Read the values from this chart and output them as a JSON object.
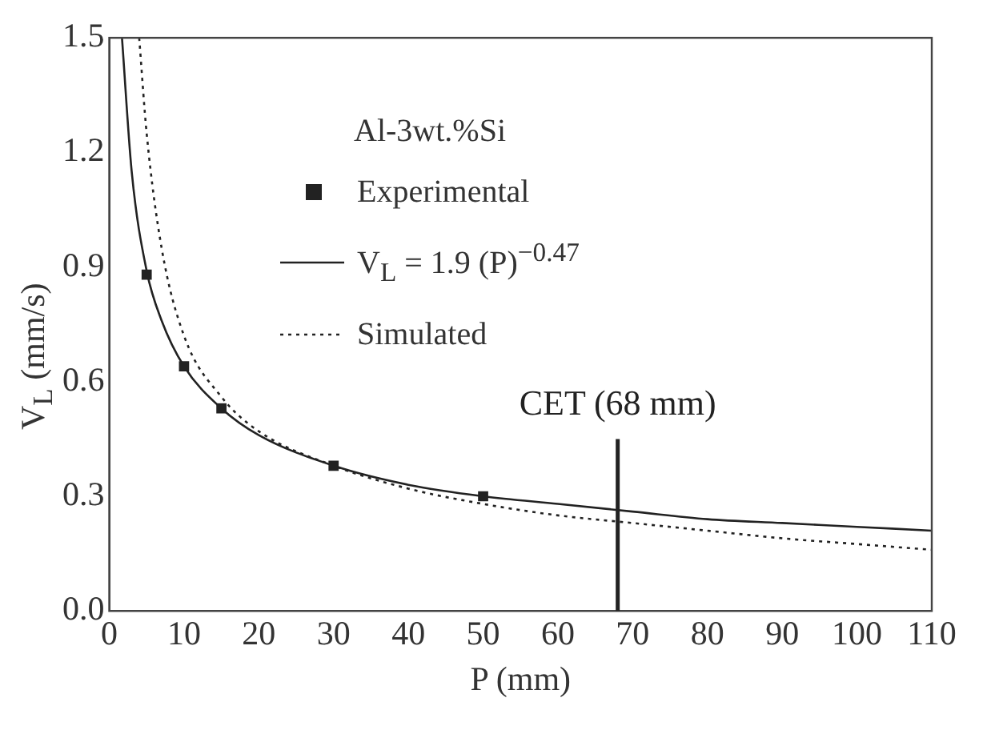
{
  "chart_data": {
    "type": "line",
    "xlabel": "P (mm)",
    "ylabel": "V$_{L}$ (mm/s)",
    "legend_title": "Al-3wt.%Si",
    "legend": "top",
    "grid": false,
    "xlim": [
      0,
      110
    ],
    "xticks": [
      0,
      10,
      20,
      30,
      40,
      50,
      60,
      70,
      80,
      90,
      100,
      110
    ],
    "ylim": [
      0,
      1.5
    ],
    "yticks": [
      {
        "value": 0,
        "label": "0.0"
      },
      0.3,
      0.6,
      0.9,
      1.2,
      1.5
    ],
    "series": [
      {
        "name": "Experimental",
        "type": "scatter",
        "marker": "square",
        "color": "#222222",
        "x": [
          5,
          10,
          15,
          30,
          50
        ],
        "values": [
          0.88,
          0.64,
          0.53,
          0.38,
          0.3
        ]
      },
      {
        "name": "V$_{L}$ = 1.9 (P)$^{−0.47}$",
        "line_style": "solid",
        "marker": "none",
        "color": "#222222",
        "x": [
          1.7,
          3,
          5,
          7,
          10,
          15,
          20,
          30,
          40,
          50,
          60,
          70,
          80,
          90,
          100,
          110
        ],
        "values": [
          1.5,
          1.15,
          0.89,
          0.76,
          0.64,
          0.53,
          0.46,
          0.38,
          0.33,
          0.3,
          0.28,
          0.26,
          0.24,
          0.23,
          0.22,
          0.21
        ]
      },
      {
        "name": "Simulated",
        "line_style": "dotted",
        "marker": "none",
        "color": "#222222",
        "x": [
          4,
          5,
          7,
          10,
          15,
          20,
          30,
          40,
          50,
          60,
          70,
          80,
          90,
          100,
          110
        ],
        "values": [
          1.5,
          1.25,
          0.95,
          0.72,
          0.56,
          0.47,
          0.38,
          0.32,
          0.28,
          0.25,
          0.23,
          0.21,
          0.19,
          0.175,
          0.16
        ]
      }
    ],
    "ref_lines": [
      {
        "axis": "x",
        "value": 68,
        "label": "CET (68 mm)",
        "color": "#222222"
      }
    ]
  }
}
